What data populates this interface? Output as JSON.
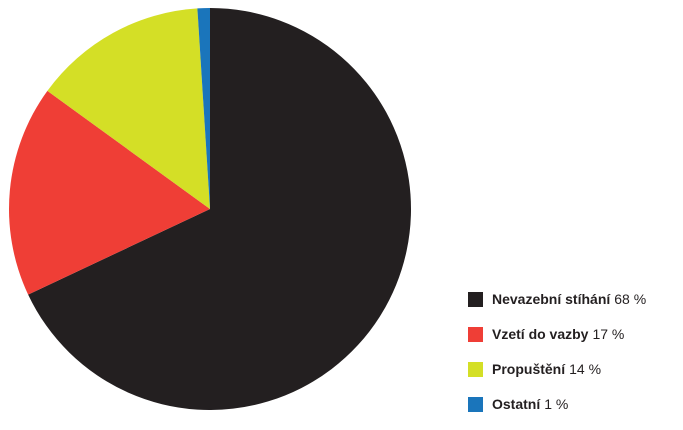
{
  "chart_data": {
    "type": "pie",
    "title": "",
    "slices": [
      {
        "label": "Nevazební stíhání",
        "value": 68,
        "value_label": "68 %",
        "color": "#231f20"
      },
      {
        "label": "Vzetí do vazby",
        "value": 17,
        "value_label": "17 %",
        "color": "#ef3e36"
      },
      {
        "label": "Propuštění",
        "value": 14,
        "value_label": "14 %",
        "color": "#d4df26"
      },
      {
        "label": "Ostatní",
        "value": 1,
        "value_label": "1 %",
        "color": "#1a75bb"
      }
    ],
    "legend_position": "bottom-right"
  }
}
